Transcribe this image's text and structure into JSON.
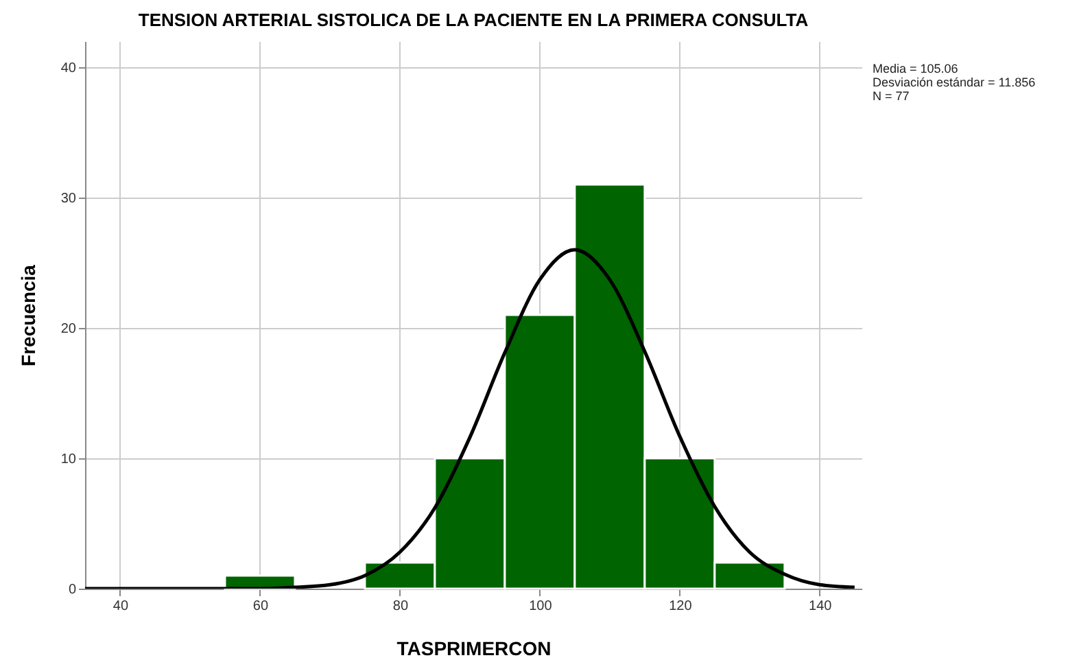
{
  "chart_data": {
    "type": "histogram",
    "title": "TENSION ARTERIAL SISTOLICA DE LA PACIENTE EN LA PRIMERA CONSULTA",
    "xlabel": "TASPRIMERCON",
    "ylabel": "Frecuencia",
    "bins": [
      55,
      65,
      75,
      85,
      95,
      105,
      115,
      125,
      135
    ],
    "values": [
      1,
      0,
      2,
      10,
      21,
      31,
      10,
      2
    ],
    "color": "#006400",
    "series": [
      {
        "type": "line",
        "color": "#000000",
        "x": [
          35,
          40,
          45,
          50,
          55,
          60,
          65,
          70,
          75,
          80,
          85,
          90,
          95,
          100,
          105,
          110,
          115,
          120,
          125,
          130,
          135,
          140,
          145
        ],
        "values": [
          0,
          0,
          0,
          0,
          0,
          0,
          0.1,
          0.3,
          1,
          2.8,
          6.2,
          11.6,
          18.1,
          23.7,
          26,
          23.7,
          18.2,
          11.7,
          6.3,
          2.8,
          1.1,
          0.3,
          0.1
        ]
      }
    ],
    "xlim": [
      35,
      146
    ],
    "xticks": [
      40,
      60,
      80,
      100,
      120,
      140
    ],
    "ylim": [
      0,
      42
    ],
    "yticks": [
      0,
      10,
      20,
      30,
      40
    ],
    "grid": true,
    "annotations": [
      "Media = 105.06",
      "Desviación estándar = 11.856",
      "N = 77"
    ]
  }
}
